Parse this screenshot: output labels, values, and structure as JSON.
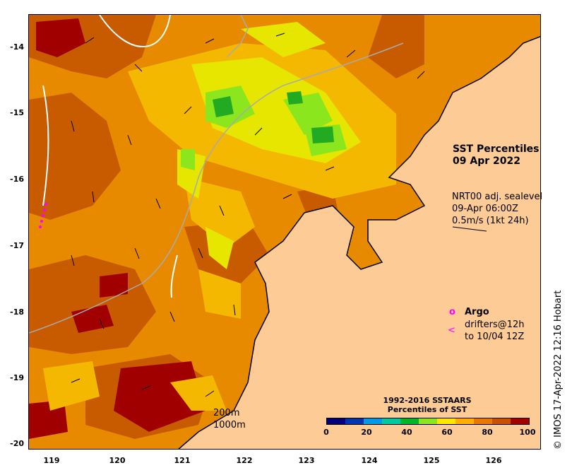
{
  "title": {
    "line1": "SST Percentiles",
    "line2": "09 Apr 2022"
  },
  "sealevel": {
    "line1": "NRT00 adj. sealevel",
    "line2": "09-Apr 06:00Z",
    "line3": "0.5m/s (1kt 24h)"
  },
  "legend": {
    "argo_marker": "o",
    "argo": "Argo",
    "drifters_marker": "<",
    "drifters_line1": "drifters@12h",
    "drifters_line2": "to 10/04 12Z"
  },
  "contours": {
    "c200": "200m",
    "c1000": "1000m"
  },
  "credit": "© IMOS 17-Apr-2022 12:16 Hobart",
  "colorbar": {
    "title_line1": "1992-2016 SSTAARS",
    "title_line2": "Percentiles of SST",
    "ticks": [
      "0",
      "20",
      "40",
      "60",
      "80",
      "100"
    ],
    "colors": [
      "#00007a",
      "#0033b0",
      "#0099e6",
      "#00c8a0",
      "#00b428",
      "#8ce61e",
      "#ffe600",
      "#ffae00",
      "#e87800",
      "#c85000",
      "#a00000"
    ]
  },
  "axes": {
    "lat_labels": [
      "-14",
      "-15",
      "-16",
      "-17",
      "-18",
      "-19",
      "-20"
    ],
    "lon_labels": [
      "119",
      "120",
      "121",
      "122",
      "123",
      "124",
      "125",
      "126"
    ]
  },
  "colors": {
    "land": "#fdcb96",
    "sea_base": "#e88a00",
    "warm": "#c85a00",
    "hot": "#a00000",
    "mid": "#f5b800",
    "cool": "#e6e600",
    "cooler": "#8ce61e",
    "coolest": "#22aa22",
    "argo": "#ff00ff"
  }
}
